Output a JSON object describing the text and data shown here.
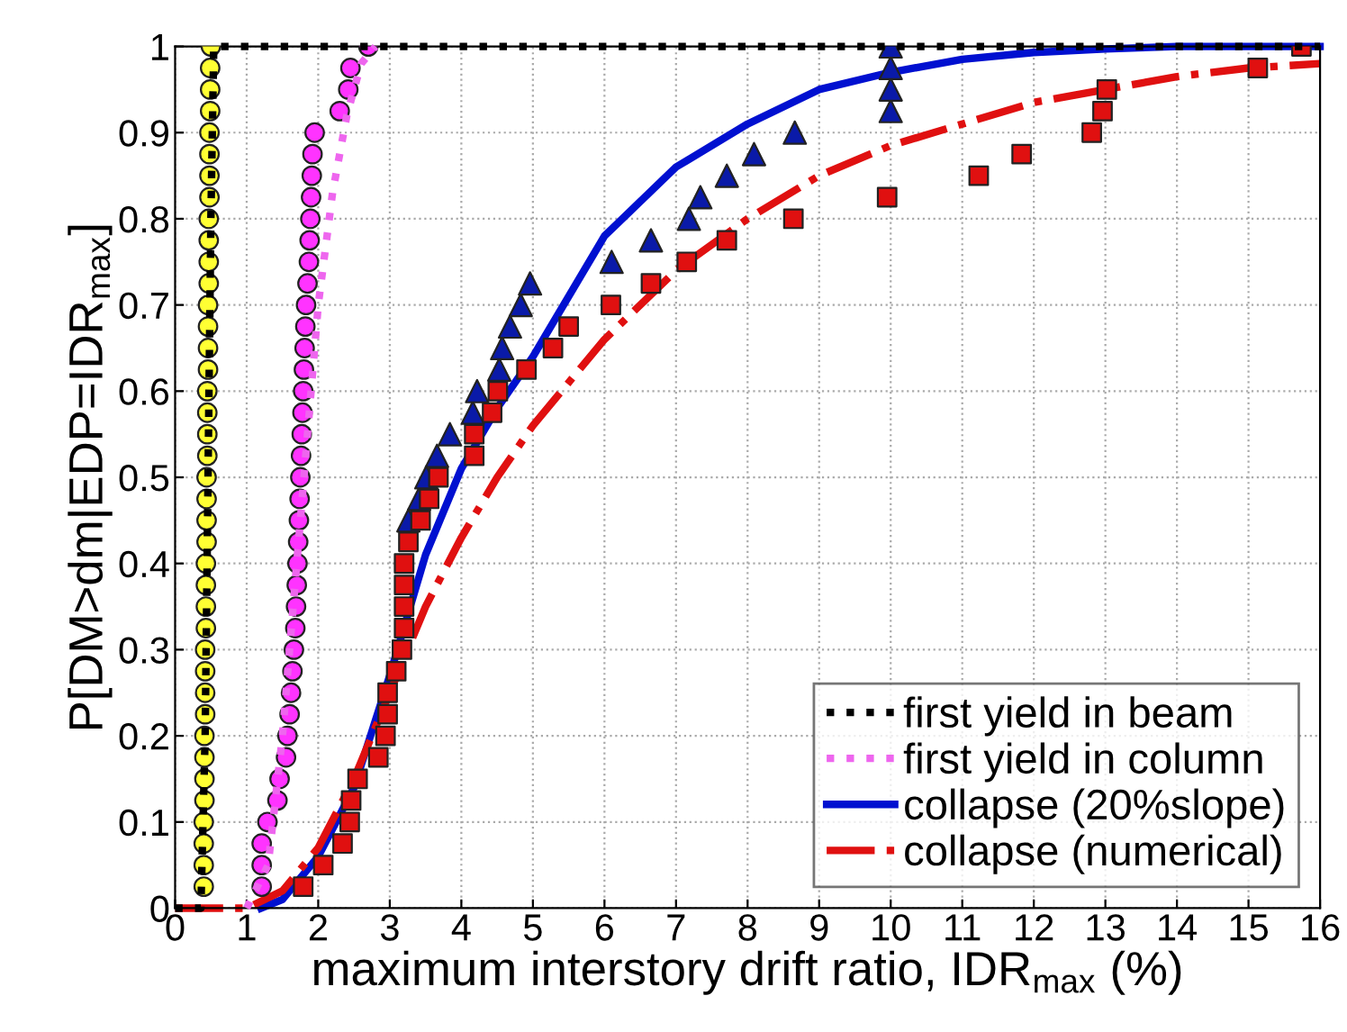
{
  "chart_data": {
    "type": "line",
    "xlabel": "maximum interstory drift ratio, IDR$_{max}$ (%)",
    "ylabel": "P[DM>dm|EDP=IDR$_{max}$]",
    "xlim": [
      0,
      16
    ],
    "xticks": [
      0,
      1,
      2,
      3,
      4,
      5,
      6,
      7,
      8,
      9,
      10,
      11,
      12,
      13,
      14,
      15,
      16
    ],
    "ylim": [
      0,
      1
    ],
    "yticks": [
      0,
      0.1,
      0.2,
      0.3,
      0.4,
      0.5,
      0.6,
      0.7,
      0.8,
      0.9,
      1
    ],
    "grid": true,
    "legend": "bottom right",
    "series": [
      {
        "type": "scatter",
        "marker": "circle",
        "color": "#ffff33",
        "x": [
          0.4,
          0.4,
          0.4,
          0.4,
          0.41,
          0.41,
          0.41,
          0.41,
          0.42,
          0.42,
          0.42,
          0.42,
          0.43,
          0.43,
          0.43,
          0.43,
          0.44,
          0.44,
          0.44,
          0.44,
          0.45,
          0.45,
          0.45,
          0.45,
          0.46,
          0.46,
          0.46,
          0.46,
          0.47,
          0.47,
          0.47,
          0.47,
          0.48,
          0.48,
          0.48,
          0.48,
          0.49,
          0.49,
          0.49,
          0.5
        ],
        "values": [
          0.025,
          0.05,
          0.075,
          0.1,
          0.125,
          0.15,
          0.175,
          0.2,
          0.225,
          0.25,
          0.275,
          0.3,
          0.325,
          0.35,
          0.375,
          0.4,
          0.425,
          0.45,
          0.475,
          0.5,
          0.525,
          0.55,
          0.575,
          0.6,
          0.625,
          0.65,
          0.675,
          0.7,
          0.725,
          0.75,
          0.775,
          0.8,
          0.825,
          0.85,
          0.875,
          0.9,
          0.925,
          0.95,
          0.975,
          1.0
        ]
      },
      {
        "type": "scatter",
        "marker": "circle",
        "color": "#ff33ff",
        "x": [
          1.21,
          1.21,
          1.21,
          1.29,
          1.43,
          1.46,
          1.55,
          1.57,
          1.6,
          1.62,
          1.64,
          1.66,
          1.68,
          1.69,
          1.7,
          1.71,
          1.72,
          1.73,
          1.74,
          1.75,
          1.76,
          1.77,
          1.78,
          1.79,
          1.8,
          1.81,
          1.82,
          1.83,
          1.85,
          1.87,
          1.88,
          1.89,
          1.9,
          1.91,
          1.92,
          1.95,
          2.3,
          2.42,
          2.45,
          2.7
        ],
        "values": [
          0.025,
          0.05,
          0.075,
          0.1,
          0.125,
          0.15,
          0.175,
          0.2,
          0.225,
          0.25,
          0.275,
          0.3,
          0.325,
          0.35,
          0.375,
          0.4,
          0.425,
          0.45,
          0.475,
          0.5,
          0.525,
          0.55,
          0.575,
          0.6,
          0.625,
          0.65,
          0.675,
          0.7,
          0.725,
          0.75,
          0.775,
          0.8,
          0.825,
          0.85,
          0.875,
          0.9,
          0.925,
          0.95,
          0.975,
          1.0
        ]
      },
      {
        "type": "scatter",
        "marker": "triangle",
        "color": "#0a1aa8",
        "x": [
          3.26,
          3.41,
          3.51,
          3.66,
          3.84,
          4.16,
          4.22,
          4.53,
          4.57,
          4.68,
          4.83,
          4.96,
          6.1,
          6.65,
          7.18,
          7.34,
          7.71,
          8.09,
          8.66,
          10.0,
          10.0,
          10.0,
          10.0
        ],
        "values": [
          0.45,
          0.475,
          0.5,
          0.525,
          0.55,
          0.575,
          0.6,
          0.625,
          0.65,
          0.675,
          0.7,
          0.725,
          0.75,
          0.775,
          0.8,
          0.825,
          0.85,
          0.875,
          0.9,
          0.925,
          0.95,
          0.975,
          1.0
        ]
      },
      {
        "type": "scatter",
        "marker": "square",
        "color": "#e01010",
        "x": [
          1.79,
          2.07,
          2.34,
          2.44,
          2.46,
          2.55,
          2.84,
          2.94,
          2.97,
          2.97,
          3.09,
          3.17,
          3.2,
          3.2,
          3.2,
          3.2,
          3.26,
          3.43,
          3.55,
          3.68,
          4.18,
          4.18,
          4.43,
          4.51,
          4.91,
          5.28,
          5.5,
          6.09,
          6.65,
          7.15,
          7.71,
          8.64,
          9.95,
          11.23,
          11.83,
          12.81,
          12.96,
          13.02,
          15.13,
          15.74
        ],
        "values": [
          0.025,
          0.05,
          0.075,
          0.1,
          0.125,
          0.15,
          0.175,
          0.2,
          0.225,
          0.25,
          0.275,
          0.3,
          0.325,
          0.35,
          0.375,
          0.4,
          0.425,
          0.45,
          0.475,
          0.5,
          0.525,
          0.55,
          0.575,
          0.6,
          0.625,
          0.65,
          0.675,
          0.7,
          0.725,
          0.75,
          0.775,
          0.8,
          0.825,
          0.85,
          0.875,
          0.9,
          0.925,
          0.95,
          0.975,
          1.0
        ]
      },
      {
        "name": "first yield in beam",
        "marker": "none",
        "line_style": "dotted",
        "color": "#000000",
        "x": [
          0,
          0.36,
          0.42,
          0.46,
          0.5,
          0.54,
          16
        ],
        "values": [
          0,
          0,
          0.2,
          0.5,
          0.8,
          1,
          1
        ]
      },
      {
        "name": "first yield in column",
        "marker": "none",
        "line_style": "dotted",
        "color": "#ee66ee",
        "x": [
          1.0,
          1.3,
          1.5,
          1.7,
          1.85,
          2.0,
          2.2,
          2.4,
          2.6,
          2.8
        ],
        "values": [
          0,
          0.05,
          0.2,
          0.4,
          0.55,
          0.7,
          0.83,
          0.92,
          0.98,
          1.0
        ]
      },
      {
        "name": "collapse (20%slope)",
        "marker": "none",
        "line_style": "solid",
        "color": "#0010d0",
        "x": [
          1.2,
          1.5,
          2,
          2.5,
          3,
          3.5,
          4,
          4.5,
          5,
          6,
          7,
          8,
          9,
          10,
          11,
          12,
          13,
          14,
          16
        ],
        "values": [
          0,
          0.01,
          0.06,
          0.14,
          0.27,
          0.41,
          0.51,
          0.58,
          0.64,
          0.78,
          0.86,
          0.91,
          0.95,
          0.97,
          0.985,
          0.993,
          0.997,
          1.0,
          1.0
        ]
      },
      {
        "name": "collapse (numerical)",
        "marker": "none",
        "line_style": "dashed",
        "color": "#e01010",
        "x": [
          0,
          1.0,
          1.5,
          2,
          2.5,
          3,
          3.5,
          4,
          4.5,
          5,
          6,
          7,
          8,
          9,
          10,
          11,
          12,
          13,
          14,
          15,
          16
        ],
        "values": [
          0,
          0,
          0.02,
          0.07,
          0.15,
          0.25,
          0.35,
          0.43,
          0.5,
          0.56,
          0.66,
          0.74,
          0.8,
          0.85,
          0.885,
          0.91,
          0.935,
          0.95,
          0.965,
          0.975,
          0.98
        ]
      }
    ]
  }
}
